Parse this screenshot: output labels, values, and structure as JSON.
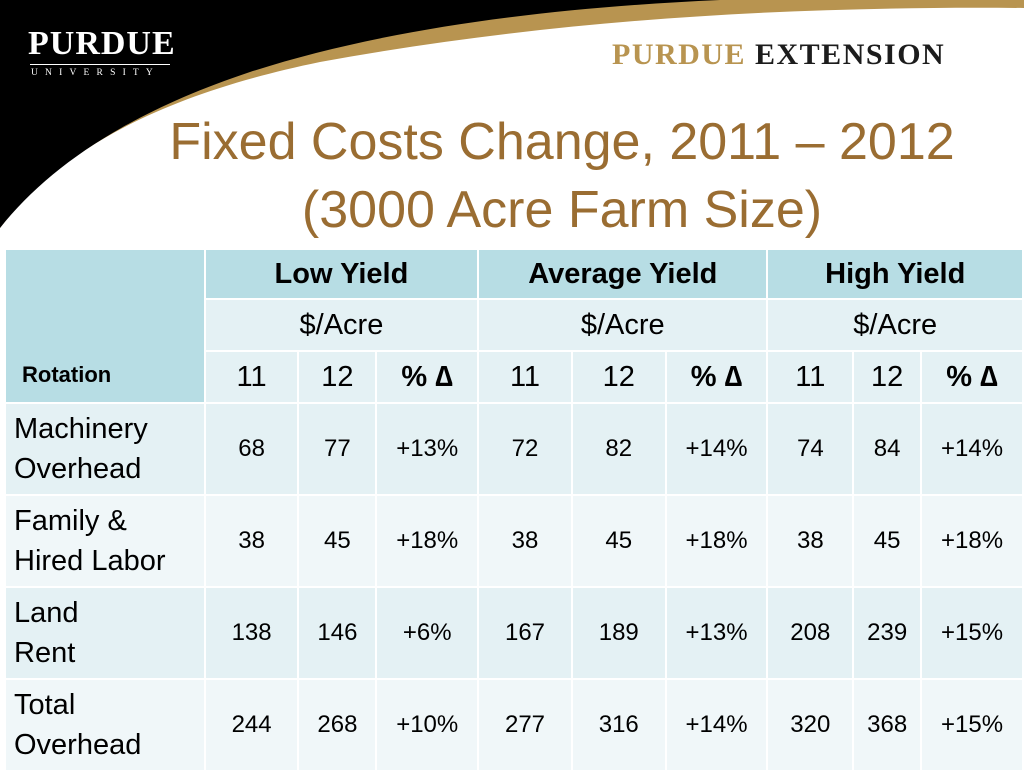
{
  "branding": {
    "university_word": "PURDUE",
    "university_sub": "UNIVERSITY",
    "extension_part1": "PURDUE",
    "extension_part2": "EXTENSION"
  },
  "colors": {
    "title": "#9a6d32",
    "gold": "#b89450",
    "header_fill": "#b7dde4",
    "row_fill": "#e4f1f4",
    "row_fill_alt": "#f0f7f9"
  },
  "slide": {
    "title_line1": "Fixed Costs Change, 2011 – 2012",
    "title_line2": "(3000 Acre Farm Size)"
  },
  "table": {
    "rotation_label": "Rotation",
    "groups": [
      {
        "name": "Low Yield",
        "unit": "$/Acre"
      },
      {
        "name": "Average Yield",
        "unit": "$/Acre"
      },
      {
        "name": "High Yield",
        "unit": "$/Acre"
      }
    ],
    "subcols": [
      "11",
      "12",
      "% ∆"
    ],
    "rows": [
      {
        "label1": "Machinery",
        "label2": "Overhead",
        "values": [
          "68",
          "77",
          "+13%",
          "72",
          "82",
          "+14%",
          "74",
          "84",
          "+14%"
        ]
      },
      {
        "label1": "Family &",
        "label2": "Hired Labor",
        "values": [
          "38",
          "45",
          "+18%",
          "38",
          "45",
          "+18%",
          "38",
          "45",
          "+18%"
        ]
      },
      {
        "label1": "Land",
        "label2": "Rent",
        "values": [
          "138",
          "146",
          "+6%",
          "167",
          "189",
          "+13%",
          "208",
          "239",
          "+15%"
        ]
      },
      {
        "label1": "Total",
        "label2": "Overhead",
        "values": [
          "244",
          "268",
          "+10%",
          "277",
          "316",
          "+14%",
          "320",
          "368",
          "+15%"
        ]
      }
    ]
  }
}
